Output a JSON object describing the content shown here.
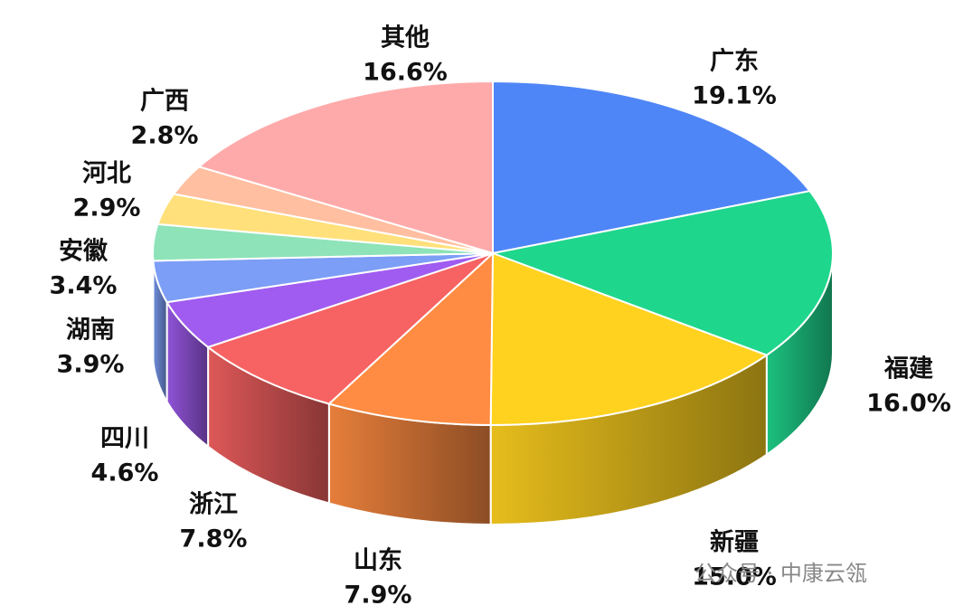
{
  "chart_data": {
    "type": "pie3d",
    "categories": [
      "广东",
      "福建",
      "新疆",
      "山东",
      "浙江",
      "四川",
      "湖南",
      "安徽",
      "河北",
      "广西",
      "其他"
    ],
    "values": [
      19.1,
      16.0,
      15.0,
      7.9,
      7.8,
      4.6,
      3.9,
      3.4,
      2.9,
      2.8,
      16.6
    ],
    "value_labels": [
      "19.1%",
      "16.0%",
      "15.0%",
      "7.9%",
      "7.8%",
      "4.6%",
      "3.9%",
      "3.4%",
      "2.9%",
      "2.8%",
      "16.6%"
    ],
    "colors": [
      "#4f86f7",
      "#1fd68d",
      "#ffd21f",
      "#ff8c42",
      "#f76262",
      "#a05cf0",
      "#7c9ef6",
      "#8ee3b9",
      "#ffe07a",
      "#ffbfa0",
      "#ffaaaa"
    ],
    "watermark": "公众号 · 中康云瓴"
  }
}
